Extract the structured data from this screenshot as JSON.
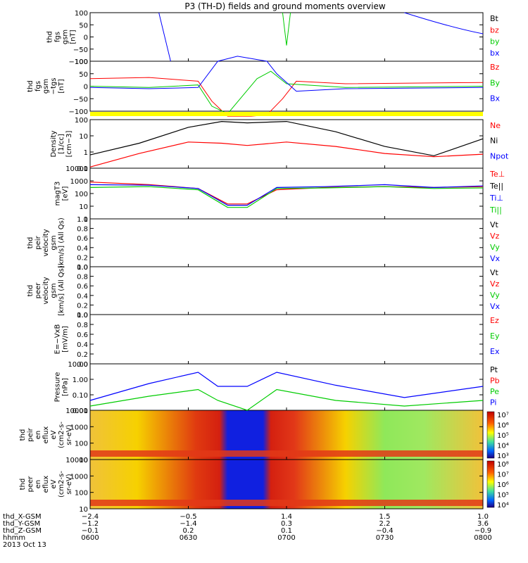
{
  "title": "P3 (TH-D) fields and ground moments overview",
  "panels": [
    {
      "id": "fgs",
      "ylabel": [
        "thd",
        "fgs",
        "gsm",
        "[nT]"
      ],
      "ticks": [
        "100",
        "50",
        "0",
        "−50",
        "−100"
      ],
      "legend": [
        {
          "label": "Bt",
          "color": "#000000"
        },
        {
          "label": "bz",
          "color": "#ff0000"
        },
        {
          "label": "by",
          "color": "#00cc00"
        },
        {
          "label": "bx",
          "color": "#0000ff"
        }
      ]
    },
    {
      "id": "fgs-tgs",
      "ylabel": [
        "thd",
        "fgs",
        "gsm",
        "−tgs",
        "[nT]"
      ],
      "ticks": [
        "100",
        "50",
        "0",
        "−50",
        "−100"
      ],
      "legend": [
        {
          "label": "Bz",
          "color": "#ff0000"
        },
        {
          "label": "By",
          "color": "#00cc00"
        },
        {
          "label": "Bx",
          "color": "#0000ff"
        }
      ]
    },
    {
      "id": "density",
      "ylabel": [
        "Density",
        "[1/cc]",
        "[cm−3]"
      ],
      "ticks": [
        "100",
        "10",
        "1",
        "0.1"
      ],
      "legend": [
        {
          "label": "Ne",
          "color": "#ff0000"
        },
        {
          "label": "Ni",
          "color": "#000000"
        },
        {
          "label": "Npot",
          "color": "#0000ff"
        }
      ]
    },
    {
      "id": "temp",
      "ylabel": [
        "magT3",
        "[eV]"
      ],
      "ticks": [
        "10000",
        "1000",
        "100",
        "10",
        "1"
      ],
      "legend": [
        {
          "label": "Te⊥",
          "color": "#ff0000"
        },
        {
          "label": "Te||",
          "color": "#000000"
        },
        {
          "label": "Ti⊥",
          "color": "#0000ff"
        },
        {
          "label": "Ti||",
          "color": "#00cc00"
        }
      ]
    },
    {
      "id": "peir-vel",
      "ylabel": [
        "thd",
        "peir",
        "velocity",
        "gsm",
        "[km/s] (All Qs)"
      ],
      "ticks": [
        "1.0",
        "0.8",
        "0.6",
        "0.4",
        "0.2",
        "0.0"
      ],
      "legend": [
        {
          "label": "Vt",
          "color": "#000000"
        },
        {
          "label": "Vz",
          "color": "#ff0000"
        },
        {
          "label": "Vy",
          "color": "#00cc00"
        },
        {
          "label": "Vx",
          "color": "#0000ff"
        }
      ]
    },
    {
      "id": "peer-vel",
      "ylabel": [
        "thd",
        "peer",
        "velocity",
        "gsm",
        "[km/s] (All Qs)"
      ],
      "ticks": [
        "1.0",
        "0.8",
        "0.6",
        "0.4",
        "0.2",
        "0.0"
      ],
      "legend": [
        {
          "label": "Vt",
          "color": "#000000"
        },
        {
          "label": "Vz",
          "color": "#ff0000"
        },
        {
          "label": "Vy",
          "color": "#00cc00"
        },
        {
          "label": "Vx",
          "color": "#0000ff"
        }
      ]
    },
    {
      "id": "efield",
      "ylabel": [
        "E=−VxB",
        "[mV/m]"
      ],
      "ticks": [
        "1.0",
        "0.8",
        "0.6",
        "0.4",
        "0.2",
        "0.0"
      ],
      "legend": [
        {
          "label": "Ez",
          "color": "#ff0000"
        },
        {
          "label": "Ey",
          "color": "#00cc00"
        },
        {
          "label": "Ex",
          "color": "#0000ff"
        }
      ]
    },
    {
      "id": "pressure",
      "ylabel": [
        "Pressure",
        "[nPa]"
      ],
      "ticks": [
        "10.00",
        "1.00",
        "0.10",
        "0.01"
      ],
      "legend": [
        {
          "label": "Pt",
          "color": "#000000"
        },
        {
          "label": "Pb",
          "color": "#ff0000"
        },
        {
          "label": "Pe",
          "color": "#00cc00"
        },
        {
          "label": "Pi",
          "color": "#0000ff"
        }
      ]
    },
    {
      "id": "peir-spec",
      "ylabel": [
        "thd",
        "peir",
        "en",
        "eflux",
        "eV",
        "(cm2-s-",
        "sr-eV)"
      ],
      "ticks": [
        "10000",
        "1000",
        "100",
        "10"
      ],
      "cbar": [
        "10⁷",
        "10⁶",
        "10⁵",
        "10⁴",
        "10³"
      ]
    },
    {
      "id": "peer-spec",
      "ylabel": [
        "thd",
        "peer",
        "en",
        "eflux",
        "eV",
        "(cm2-s-",
        "sr-eV)"
      ],
      "ticks": [
        "10000",
        "1000",
        "100",
        "10"
      ],
      "cbar": [
        "10⁸",
        "10⁷",
        "10⁶",
        "10⁵",
        "10⁴"
      ]
    }
  ],
  "xaxis": {
    "rows": [
      {
        "label": "thd_X-GSM",
        "values": [
          "−2.4",
          "−0.5",
          "1.4",
          "1.5",
          "1.0"
        ]
      },
      {
        "label": "thd_Y-GSM",
        "values": [
          "−1.2",
          "−1.4",
          "0.3",
          "2.2",
          "3.6"
        ]
      },
      {
        "label": "thd_Z-GSM",
        "values": [
          "−0.1",
          "0.2",
          "0.1",
          "−0.4",
          "−0.9"
        ]
      },
      {
        "label": "hhmm",
        "values": [
          "0600",
          "0630",
          "0700",
          "0730",
          "0800"
        ]
      }
    ],
    "date": "2013 Oct 13"
  },
  "chart_data": {
    "type": "line",
    "title": "P3 (TH-D) fields and ground moments overview",
    "x_range": [
      "06:00",
      "08:00"
    ],
    "density": {
      "yscale": "log",
      "ylim": [
        0.1,
        200
      ],
      "x_hours": [
        6.0,
        6.25,
        6.5,
        6.67,
        6.8,
        7.0,
        7.25,
        7.5,
        7.75,
        8.0
      ],
      "series": [
        {
          "name": "Ni",
          "values": [
            0.8,
            5,
            60,
            150,
            120,
            150,
            30,
            3,
            0.7,
            10
          ]
        },
        {
          "name": "Ne",
          "values": [
            0.12,
            1,
            6,
            5,
            3.5,
            6,
            3,
            1,
            0.6,
            0.9
          ]
        }
      ]
    },
    "temperature": {
      "yscale": "log",
      "ylim": [
        1,
        10000
      ],
      "x_hours": [
        6.0,
        6.3,
        6.55,
        6.7,
        6.8,
        6.95,
        7.2,
        7.5,
        7.75,
        8.0
      ],
      "series": [
        {
          "name": "Te⊥",
          "values": [
            800,
            500,
            250,
            15,
            15,
            200,
            300,
            350,
            300,
            350
          ]
        },
        {
          "name": "Ti⊥",
          "values": [
            500,
            450,
            250,
            12,
            12,
            300,
            350,
            500,
            300,
            400
          ]
        },
        {
          "name": "Ti||",
          "values": [
            300,
            350,
            200,
            8,
            8,
            250,
            280,
            350,
            250,
            280
          ]
        }
      ]
    },
    "pressure": {
      "yscale": "log",
      "ylim": [
        0.01,
        20
      ],
      "x_hours": [
        6.0,
        6.3,
        6.55,
        6.65,
        6.8,
        6.95,
        7.25,
        7.6,
        8.0
      ],
      "series": [
        {
          "name": "Pi",
          "values": [
            0.05,
            0.8,
            5,
            0.5,
            0.5,
            5,
            0.6,
            0.08,
            0.5
          ]
        },
        {
          "name": "Pe",
          "values": [
            0.02,
            0.1,
            0.3,
            0.05,
            0.01,
            0.3,
            0.05,
            0.02,
            0.05
          ]
        }
      ]
    }
  }
}
